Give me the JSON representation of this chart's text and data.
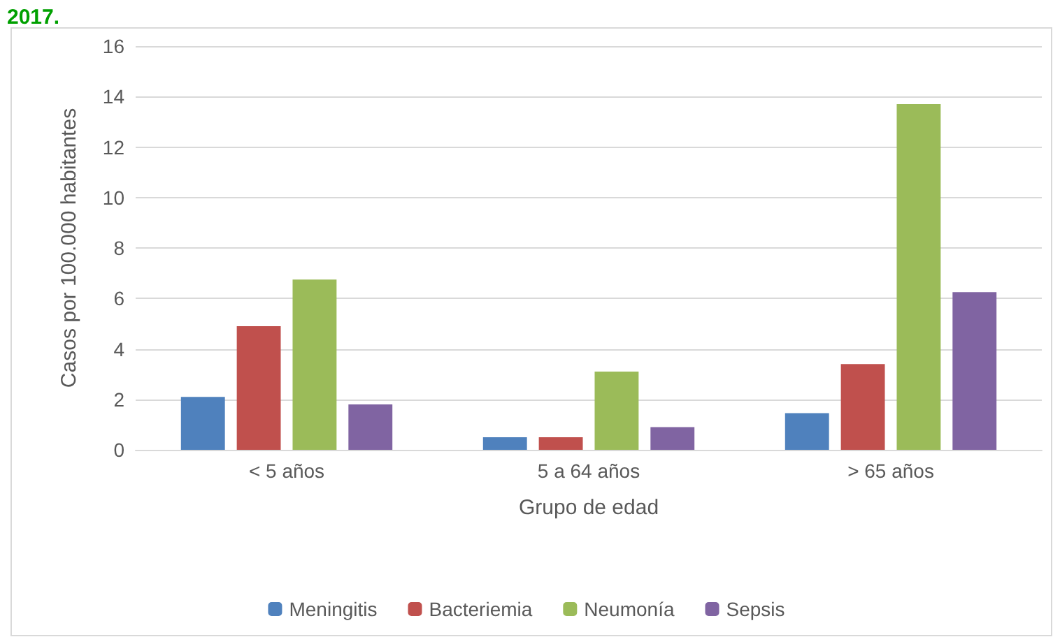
{
  "chart_data": {
    "type": "bar",
    "title": "2017.",
    "xlabel": "Grupo de edad",
    "ylabel": "Casos por 100.000 habitantes",
    "categories": [
      "< 5 años",
      "5 a 64 años",
      "> 65 años"
    ],
    "series": [
      {
        "name": "Meningitis",
        "color": "#4f81bd",
        "values": [
          2.1,
          0.5,
          1.45
        ]
      },
      {
        "name": "Bacteriemia",
        "color": "#c0504d",
        "values": [
          4.9,
          0.5,
          3.4
        ]
      },
      {
        "name": "Neumonía",
        "color": "#9bbb59",
        "values": [
          6.75,
          3.1,
          13.7
        ]
      },
      {
        "name": "Sepsis",
        "color": "#8064a2",
        "values": [
          1.8,
          0.9,
          6.25
        ]
      }
    ],
    "ylim": [
      0,
      16
    ],
    "yticks": [
      0,
      2,
      4,
      6,
      8,
      10,
      12,
      14,
      16
    ],
    "grid": "y",
    "legend": "bottom"
  }
}
